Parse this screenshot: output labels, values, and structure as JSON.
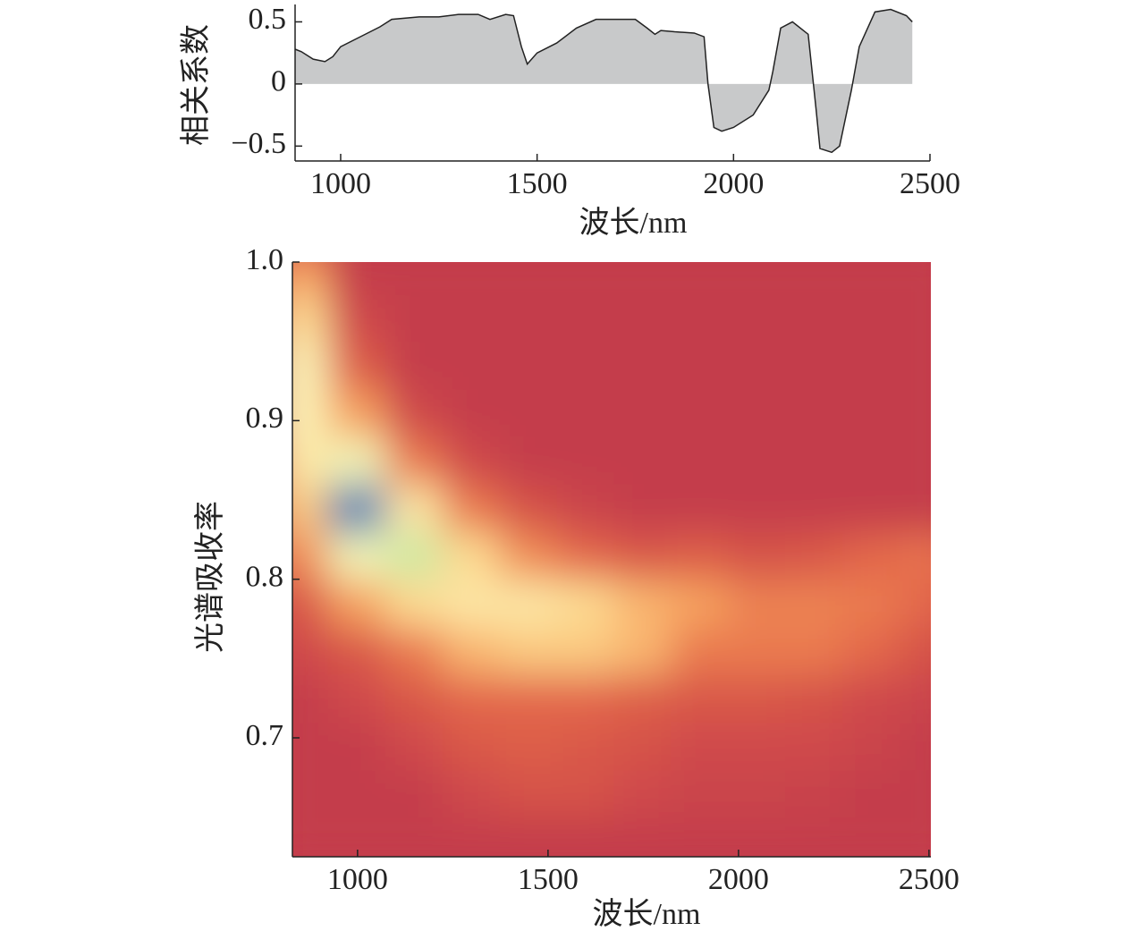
{
  "chart_data": [
    {
      "type": "area",
      "ylabel": "相关系数",
      "xlabel": "波长/nm",
      "color": "#c8c9ca",
      "line_color": "#222222",
      "x": [
        884,
        900,
        930,
        960,
        980,
        1000,
        1050,
        1100,
        1130,
        1200,
        1250,
        1300,
        1350,
        1380,
        1420,
        1440,
        1460,
        1475,
        1500,
        1550,
        1600,
        1650,
        1700,
        1750,
        1780,
        1800,
        1815,
        1850,
        1900,
        1925,
        1935,
        1950,
        1970,
        2000,
        2050,
        2090,
        2100,
        2120,
        2150,
        2190,
        2210,
        2220,
        2250,
        2270,
        2300,
        2320,
        2360,
        2400,
        2440,
        2455
      ],
      "values": [
        0.28,
        0.26,
        0.2,
        0.18,
        0.22,
        0.3,
        0.38,
        0.46,
        0.52,
        0.54,
        0.54,
        0.56,
        0.56,
        0.52,
        0.56,
        0.55,
        0.3,
        0.16,
        0.25,
        0.33,
        0.45,
        0.52,
        0.52,
        0.52,
        0.45,
        0.4,
        0.43,
        0.42,
        0.41,
        0.38,
        0.0,
        -0.35,
        -0.38,
        -0.35,
        -0.25,
        -0.05,
        0.1,
        0.45,
        0.5,
        0.4,
        -0.2,
        -0.52,
        -0.55,
        -0.5,
        -0.05,
        0.3,
        0.58,
        0.6,
        0.55,
        0.5
      ],
      "xlim": [
        884,
        2500
      ],
      "xticks": [
        1000,
        1500,
        2000,
        2500
      ],
      "ylim": [
        -0.62,
        0.64
      ],
      "yticks": [
        {
          "value": -0.5,
          "label": "−0.5"
        },
        0,
        0.5
      ]
    },
    {
      "type": "heatmap",
      "ylabel": "光谱吸收率",
      "xlabel": "波长/nm",
      "colorscale": [
        "#c43c4b",
        "#e2644a",
        "#f59b5a",
        "#fdd58a",
        "#fbf7bd",
        "#c9e7a0",
        "#7cc4a4",
        "#3e7cb7"
      ],
      "x": [
        850,
        1000,
        1150,
        1300,
        1450,
        1600,
        1750,
        1900,
        2050,
        2200,
        2350,
        2500
      ],
      "y": [
        0.635,
        0.665,
        0.695,
        0.725,
        0.755,
        0.785,
        0.815,
        0.845,
        0.875,
        0.905,
        0.935,
        0.965,
        0.995
      ],
      "z": [
        [
          0,
          0,
          0,
          0,
          0,
          0,
          0,
          0,
          0,
          0,
          0,
          0
        ],
        [
          0,
          0,
          0,
          0.05,
          0.08,
          0.08,
          0.05,
          0.03,
          0.03,
          0.02,
          0,
          0
        ],
        [
          0,
          0,
          0.05,
          0.1,
          0.12,
          0.1,
          0.08,
          0.05,
          0.05,
          0.05,
          0.03,
          0
        ],
        [
          0,
          0.05,
          0.1,
          0.15,
          0.15,
          0.15,
          0.12,
          0.1,
          0.1,
          0.08,
          0.05,
          0.03
        ],
        [
          0.05,
          0.1,
          0.2,
          0.35,
          0.4,
          0.4,
          0.35,
          0.2,
          0.2,
          0.2,
          0.15,
          0.08
        ],
        [
          0.1,
          0.3,
          0.45,
          0.5,
          0.5,
          0.45,
          0.35,
          0.3,
          0.22,
          0.22,
          0.2,
          0.15
        ],
        [
          0.25,
          0.6,
          0.7,
          0.45,
          0.25,
          0.15,
          0.1,
          0.12,
          0.08,
          0.1,
          0.15,
          0.18
        ],
        [
          0.4,
          1.0,
          0.5,
          0.2,
          0.08,
          0.03,
          0,
          0,
          0,
          0,
          0,
          0
        ],
        [
          0.5,
          0.6,
          0.2,
          0.05,
          0,
          0,
          0,
          0,
          0,
          0,
          0,
          0
        ],
        [
          0.55,
          0.3,
          0.05,
          0,
          0,
          0,
          0,
          0,
          0,
          0,
          0,
          0
        ],
        [
          0.55,
          0.12,
          0,
          0,
          0,
          0,
          0,
          0,
          0,
          0,
          0,
          0
        ],
        [
          0.45,
          0.05,
          0,
          0,
          0,
          0,
          0,
          0,
          0,
          0,
          0,
          0
        ],
        [
          0.3,
          0,
          0,
          0,
          0,
          0,
          0,
          0,
          0,
          0,
          0,
          0
        ]
      ],
      "xlim": [
        829,
        2505
      ],
      "xticks": [
        1000,
        1500,
        2000,
        2500
      ],
      "ylim": [
        0.625,
        1.0
      ],
      "yticks": [
        0.7,
        0.8,
        0.9,
        {
          "value": 1,
          "label": "1.0"
        }
      ]
    }
  ]
}
